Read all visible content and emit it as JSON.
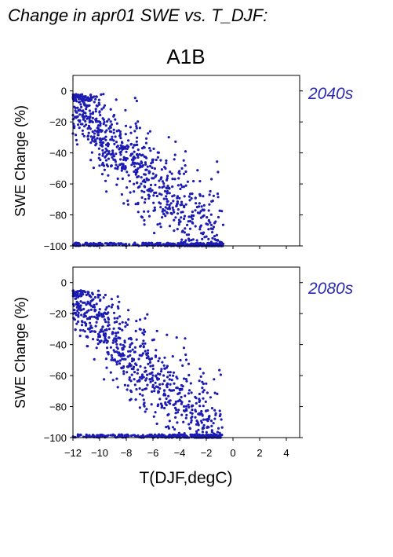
{
  "title": "Change in apr01 SWE vs. T_DJF:",
  "scenario": "A1B",
  "xlabel": "T(DJF,degC)",
  "colors": {
    "points": "#1c1cb4",
    "panel_label": "#2a2ab4",
    "axis": "#000000"
  },
  "chart_data": [
    {
      "type": "scatter",
      "period": "2040s",
      "ylabel": "SWE Change (%)",
      "xlim": [
        -12,
        5
      ],
      "ylim": [
        -100,
        10
      ],
      "y_ticks": [
        "0",
        "−20",
        "−40",
        "−60",
        "−80",
        "−100"
      ],
      "x_ticks_shown": false,
      "point_cloud": {
        "count": 1100,
        "x_range": [
          -12,
          -0.7
        ],
        "y_range": [
          -100,
          -2
        ],
        "trend": "SWE change decreases from about -5% near -12 degC to about -100% near -1 degC",
        "floor_value": -100
      }
    },
    {
      "type": "scatter",
      "period": "2080s",
      "ylabel": "SWE Change (%)",
      "xlim": [
        -12,
        5
      ],
      "ylim": [
        -100,
        10
      ],
      "y_ticks": [
        "0",
        "−20",
        "−40",
        "−60",
        "−80",
        "−100"
      ],
      "x_ticks": [
        "−12",
        "−10",
        "−8",
        "−6",
        "−4",
        "−2",
        "0",
        "2",
        "4"
      ],
      "point_cloud": {
        "count": 1000,
        "x_range": [
          -12,
          -0.8
        ],
        "y_range": [
          -100,
          -5
        ],
        "trend": "SWE change decreases from about -10% near -12 degC to about -100% near -2 degC",
        "floor_value": -100
      }
    }
  ]
}
